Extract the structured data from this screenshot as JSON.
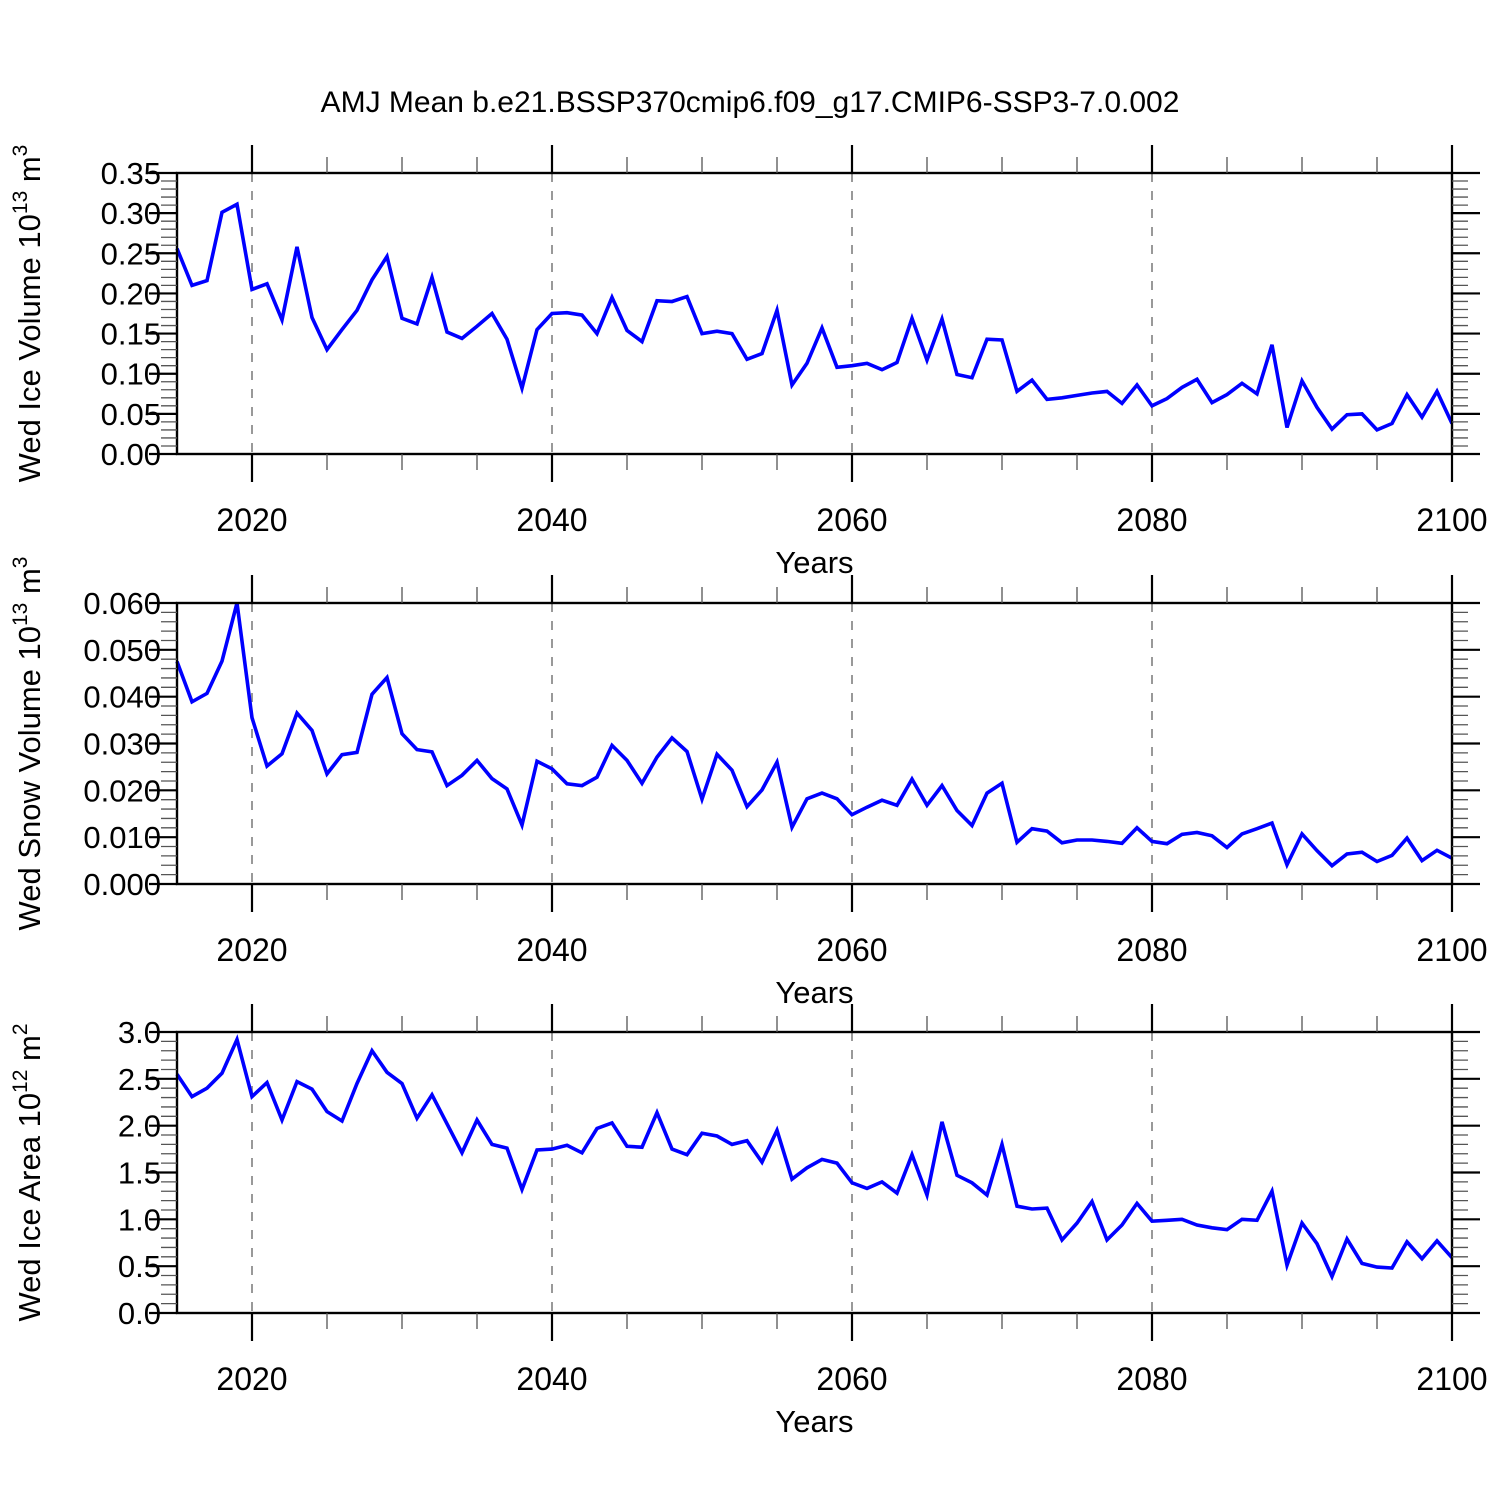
{
  "title": "AMJ Mean b.e21.BSSP370cmip6.f09_g17.CMIP6-SSP3-7.0.002",
  "chart_data": [
    {
      "type": "line",
      "name": "ice-volume",
      "xlabel": "Years",
      "ylabel": "Wed Ice Volume 10^13 m^3",
      "ylabel_parts": [
        {
          "text": "Wed Ice Volume 10",
          "sup": false
        },
        {
          "text": "13",
          "sup": true
        },
        {
          "text": " m",
          "sup": false
        },
        {
          "text": "3",
          "sup": true
        }
      ],
      "line_color": "#0000ff",
      "grid": "vertical-dashed",
      "legend": "none",
      "xlim": [
        2015,
        2100
      ],
      "ylim": [
        0,
        0.35
      ],
      "xticks": [
        2020,
        2040,
        2060,
        2080,
        2100
      ],
      "xtick_labels": [
        "2020",
        "2040",
        "2060",
        "2080",
        "2100"
      ],
      "x_gridlines": [
        2020,
        2040,
        2060,
        2080
      ],
      "yticks": [
        0.0,
        0.05,
        0.1,
        0.15,
        0.2,
        0.25,
        0.3,
        0.35
      ],
      "ytick_labels": [
        "0.00",
        "0.05",
        "0.10",
        "0.15",
        "0.20",
        "0.25",
        "0.30",
        "0.35"
      ],
      "x": [
        2015,
        2016,
        2017,
        2018,
        2019,
        2020,
        2021,
        2022,
        2023,
        2024,
        2025,
        2026,
        2027,
        2028,
        2029,
        2030,
        2031,
        2032,
        2033,
        2034,
        2035,
        2036,
        2037,
        2038,
        2039,
        2040,
        2041,
        2042,
        2043,
        2044,
        2045,
        2046,
        2047,
        2048,
        2049,
        2050,
        2051,
        2052,
        2053,
        2054,
        2055,
        2056,
        2057,
        2058,
        2059,
        2060,
        2061,
        2062,
        2063,
        2064,
        2065,
        2066,
        2067,
        2068,
        2069,
        2070,
        2071,
        2072,
        2073,
        2074,
        2075,
        2076,
        2077,
        2078,
        2079,
        2080,
        2081,
        2082,
        2083,
        2084,
        2085,
        2086,
        2087,
        2088,
        2089,
        2090,
        2091,
        2092,
        2093,
        2094,
        2095,
        2096,
        2097,
        2098,
        2099,
        2100
      ],
      "values": [
        0.256,
        0.21,
        0.216,
        0.301,
        0.311,
        0.205,
        0.212,
        0.167,
        0.258,
        0.17,
        0.13,
        0.155,
        0.179,
        0.217,
        0.246,
        0.169,
        0.162,
        0.22,
        0.152,
        0.144,
        0.159,
        0.175,
        0.143,
        0.082,
        0.155,
        0.175,
        0.176,
        0.173,
        0.15,
        0.195,
        0.154,
        0.14,
        0.191,
        0.19,
        0.196,
        0.15,
        0.153,
        0.15,
        0.118,
        0.125,
        0.179,
        0.086,
        0.113,
        0.157,
        0.108,
        0.11,
        0.113,
        0.105,
        0.114,
        0.169,
        0.117,
        0.168,
        0.099,
        0.095,
        0.143,
        0.142,
        0.078,
        0.092,
        0.068,
        0.07,
        0.073,
        0.076,
        0.078,
        0.063,
        0.086,
        0.06,
        0.069,
        0.083,
        0.093,
        0.064,
        0.074,
        0.088,
        0.075,
        0.136,
        0.033,
        0.091,
        0.058,
        0.031,
        0.049,
        0.05,
        0.03,
        0.038,
        0.074,
        0.046,
        0.078,
        0.038
      ]
    },
    {
      "type": "line",
      "name": "snow-volume",
      "xlabel": "Years",
      "ylabel": "Wed Snow Volume 10^13 m^3",
      "ylabel_parts": [
        {
          "text": "Wed Snow Volume 10",
          "sup": false
        },
        {
          "text": "13",
          "sup": true
        },
        {
          "text": " m",
          "sup": false
        },
        {
          "text": "3",
          "sup": true
        }
      ],
      "line_color": "#0000ff",
      "grid": "vertical-dashed",
      "legend": "none",
      "xlim": [
        2015,
        2100
      ],
      "ylim": [
        0,
        0.06
      ],
      "xticks": [
        2020,
        2040,
        2060,
        2080,
        2100
      ],
      "xtick_labels": [
        "2020",
        "2040",
        "2060",
        "2080",
        "2100"
      ],
      "x_gridlines": [
        2020,
        2040,
        2060,
        2080
      ],
      "yticks": [
        0.0,
        0.01,
        0.02,
        0.03,
        0.04,
        0.05,
        0.06
      ],
      "ytick_labels": [
        "0.000",
        "0.010",
        "0.020",
        "0.030",
        "0.040",
        "0.050",
        "0.060"
      ],
      "x": [
        2015,
        2016,
        2017,
        2018,
        2019,
        2020,
        2021,
        2022,
        2023,
        2024,
        2025,
        2026,
        2027,
        2028,
        2029,
        2030,
        2031,
        2032,
        2033,
        2034,
        2035,
        2036,
        2037,
        2038,
        2039,
        2040,
        2041,
        2042,
        2043,
        2044,
        2045,
        2046,
        2047,
        2048,
        2049,
        2050,
        2051,
        2052,
        2053,
        2054,
        2055,
        2056,
        2057,
        2058,
        2059,
        2060,
        2061,
        2062,
        2063,
        2064,
        2065,
        2066,
        2067,
        2068,
        2069,
        2070,
        2071,
        2072,
        2073,
        2074,
        2075,
        2076,
        2077,
        2078,
        2079,
        2080,
        2081,
        2082,
        2083,
        2084,
        2085,
        2086,
        2087,
        2088,
        2089,
        2090,
        2091,
        2092,
        2093,
        2094,
        2095,
        2096,
        2097,
        2098,
        2099,
        2100
      ],
      "values": [
        0.0475,
        0.0389,
        0.0407,
        0.0476,
        0.06,
        0.0355,
        0.0252,
        0.0278,
        0.0365,
        0.0328,
        0.0235,
        0.0276,
        0.0281,
        0.0405,
        0.0441,
        0.0321,
        0.0287,
        0.0282,
        0.021,
        0.0232,
        0.0264,
        0.0225,
        0.0203,
        0.0126,
        0.0262,
        0.0246,
        0.0214,
        0.021,
        0.0228,
        0.0296,
        0.0264,
        0.0215,
        0.0271,
        0.0312,
        0.0283,
        0.0181,
        0.0277,
        0.0243,
        0.0165,
        0.0201,
        0.026,
        0.0121,
        0.0182,
        0.0194,
        0.0182,
        0.0148,
        0.0164,
        0.0179,
        0.0168,
        0.0224,
        0.0168,
        0.021,
        0.0157,
        0.0125,
        0.0194,
        0.0215,
        0.0089,
        0.0118,
        0.0113,
        0.0088,
        0.0094,
        0.0094,
        0.0091,
        0.0087,
        0.012,
        0.0091,
        0.0086,
        0.0106,
        0.011,
        0.0103,
        0.0078,
        0.0107,
        0.0118,
        0.013,
        0.0041,
        0.0107,
        0.0071,
        0.0039,
        0.0064,
        0.0068,
        0.0048,
        0.0061,
        0.0098,
        0.005,
        0.0072,
        0.0055
      ]
    },
    {
      "type": "line",
      "name": "ice-area",
      "xlabel": "Years",
      "ylabel": "Wed Ice Area 10^12 m^2",
      "ylabel_parts": [
        {
          "text": "Wed Ice Area 10",
          "sup": false
        },
        {
          "text": "12",
          "sup": true
        },
        {
          "text": " m",
          "sup": false
        },
        {
          "text": "2",
          "sup": true
        }
      ],
      "line_color": "#0000ff",
      "grid": "vertical-dashed",
      "legend": "none",
      "xlim": [
        2015,
        2100
      ],
      "ylim": [
        0,
        3.0
      ],
      "xticks": [
        2020,
        2040,
        2060,
        2080,
        2100
      ],
      "xtick_labels": [
        "2020",
        "2040",
        "2060",
        "2080",
        "2100"
      ],
      "x_gridlines": [
        2020,
        2040,
        2060,
        2080
      ],
      "yticks": [
        0.0,
        0.5,
        1.0,
        1.5,
        2.0,
        2.5,
        3.0
      ],
      "ytick_labels": [
        "0.0",
        "0.5",
        "1.0",
        "1.5",
        "2.0",
        "2.5",
        "3.0"
      ],
      "x": [
        2015,
        2016,
        2017,
        2018,
        2019,
        2020,
        2021,
        2022,
        2023,
        2024,
        2025,
        2026,
        2027,
        2028,
        2029,
        2030,
        2031,
        2032,
        2033,
        2034,
        2035,
        2036,
        2037,
        2038,
        2039,
        2040,
        2041,
        2042,
        2043,
        2044,
        2045,
        2046,
        2047,
        2048,
        2049,
        2050,
        2051,
        2052,
        2053,
        2054,
        2055,
        2056,
        2057,
        2058,
        2059,
        2060,
        2061,
        2062,
        2063,
        2064,
        2065,
        2066,
        2067,
        2068,
        2069,
        2070,
        2071,
        2072,
        2073,
        2074,
        2075,
        2076,
        2077,
        2078,
        2079,
        2080,
        2081,
        2082,
        2083,
        2084,
        2085,
        2086,
        2087,
        2088,
        2089,
        2090,
        2091,
        2092,
        2093,
        2094,
        2095,
        2096,
        2097,
        2098,
        2099,
        2100
      ],
      "values": [
        2.55,
        2.31,
        2.4,
        2.56,
        2.92,
        2.31,
        2.46,
        2.06,
        2.47,
        2.39,
        2.15,
        2.05,
        2.45,
        2.8,
        2.57,
        2.45,
        2.08,
        2.33,
        2.02,
        1.71,
        2.06,
        1.8,
        1.76,
        1.32,
        1.74,
        1.75,
        1.79,
        1.71,
        1.97,
        2.03,
        1.78,
        1.77,
        2.14,
        1.75,
        1.69,
        1.92,
        1.89,
        1.8,
        1.84,
        1.61,
        1.95,
        1.43,
        1.55,
        1.64,
        1.6,
        1.39,
        1.33,
        1.4,
        1.28,
        1.69,
        1.26,
        2.04,
        1.47,
        1.39,
        1.26,
        1.8,
        1.14,
        1.11,
        1.12,
        0.78,
        0.96,
        1.19,
        0.78,
        0.94,
        1.17,
        0.98,
        0.99,
        1.0,
        0.94,
        0.91,
        0.89,
        1.0,
        0.99,
        1.3,
        0.51,
        0.96,
        0.74,
        0.39,
        0.79,
        0.53,
        0.49,
        0.48,
        0.76,
        0.58,
        0.77,
        0.59
      ]
    }
  ],
  "style": {
    "axis_color": "#000000",
    "minor_tick_color": "#555555",
    "gridline_color": "#999999",
    "background": "#ffffff"
  }
}
